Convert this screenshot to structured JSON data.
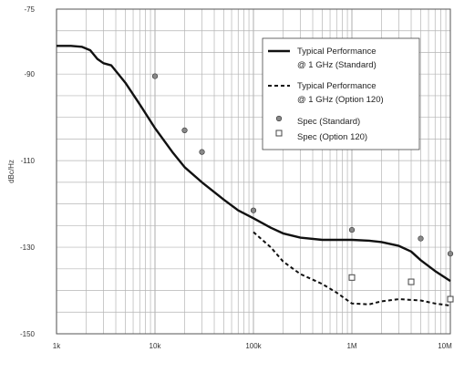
{
  "chart_data": {
    "type": "line",
    "xscale": "log",
    "xlim": [
      1000,
      10000000
    ],
    "ylim": [
      -150,
      -75
    ],
    "ylabel": "dBc/Hz",
    "x_tick_labels": [
      "1k",
      "10k",
      "100k",
      "1M",
      "10M"
    ],
    "y_tick_labels": [
      "-75",
      "-90",
      "-110",
      "-130",
      "-150"
    ],
    "grid": true,
    "legend_position": "top-right",
    "series": [
      {
        "name": "Typical Performance @ 1 GHz (Standard)",
        "style": "solid",
        "x": [
          1000,
          1400,
          1800,
          2200,
          2600,
          3000,
          3600,
          5000,
          7000,
          10000,
          15000,
          20000,
          30000,
          50000,
          70000,
          100000,
          150000,
          200000,
          300000,
          500000,
          1000000,
          1500000,
          2000000,
          3000000,
          4000000,
          5000000,
          7000000,
          10000000
        ],
        "y": [
          -83.5,
          -83.5,
          -83.7,
          -84.5,
          -86.5,
          -87.5,
          -88,
          -92,
          -97,
          -102.5,
          -108,
          -111.5,
          -115,
          -119,
          -121.5,
          -123.3,
          -125.5,
          -126.8,
          -127.8,
          -128.3,
          -128.3,
          -128.5,
          -128.8,
          -129.7,
          -131,
          -133,
          -135.5,
          -137.8
        ]
      },
      {
        "name": "Typical Performance @ 1 GHz (Option 120)",
        "style": "dashed",
        "x": [
          100000,
          150000,
          200000,
          300000,
          500000,
          700000,
          1000000,
          1500000,
          2000000,
          3000000,
          5000000,
          7000000,
          10000000
        ],
        "y": [
          -126.5,
          -130,
          -133.3,
          -136.2,
          -138.5,
          -140.5,
          -143,
          -143.2,
          -142.5,
          -142,
          -142.3,
          -143,
          -143.5
        ]
      },
      {
        "name": "Spec (Standard)",
        "style": "marker",
        "x": [
          10000,
          20000,
          30000,
          100000,
          1000000,
          5000000,
          10000000
        ],
        "y": [
          -90.5,
          -103,
          -108,
          -121.5,
          -126,
          -128,
          -131.5
        ]
      },
      {
        "name": "Spec (Option 120)",
        "style": "marker-square",
        "x": [
          1000000,
          4000000,
          10000000
        ],
        "y": [
          -137,
          -138,
          -142
        ]
      }
    ],
    "legend": {
      "entry1_line1": "Typical Performance",
      "entry1_line2": "@ 1 GHz (Standard)",
      "entry2_line1": "Typical Performance",
      "entry2_line2": "@ 1 GHz (Option 120)",
      "entry3": "Spec (Standard)",
      "entry4": "Spec (Option 120)"
    },
    "colors": {
      "line": "#111111",
      "grid": "#b5b5b5",
      "axis": "#555555"
    }
  }
}
